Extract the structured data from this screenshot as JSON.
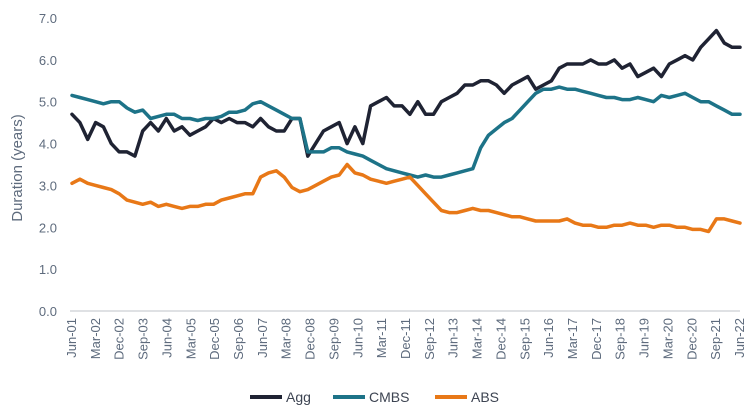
{
  "chart_data": {
    "type": "line",
    "title": "",
    "ylabel": "Duration (years)",
    "xlabel": "",
    "ylim": [
      0,
      7
    ],
    "yticks": [
      "0.0",
      "1.0",
      "2.0",
      "3.0",
      "4.0",
      "5.0",
      "6.0",
      "7.0"
    ],
    "grid": false,
    "legend_position": "bottom-center",
    "x_tick_labels": [
      "Jun-01",
      "Mar-02",
      "Dec-02",
      "Sep-03",
      "Jun-04",
      "Mar-05",
      "Dec-05",
      "Sep-06",
      "Jun-07",
      "Mar-08",
      "Dec-08",
      "Sep-09",
      "Jun-10",
      "Mar-11",
      "Dec-11",
      "Sep-12",
      "Jun-13",
      "Mar-14",
      "Dec-14",
      "Sep-15",
      "Jun-16",
      "Mar-17",
      "Dec-17",
      "Sep-18",
      "Jun-19",
      "Mar-20",
      "Dec-20",
      "Sep-21",
      "Jun-22"
    ],
    "x": [
      "Jun-01",
      "Sep-01",
      "Dec-01",
      "Mar-02",
      "Jun-02",
      "Sep-02",
      "Dec-02",
      "Mar-03",
      "Jun-03",
      "Sep-03",
      "Dec-03",
      "Mar-04",
      "Jun-04",
      "Sep-04",
      "Dec-04",
      "Mar-05",
      "Jun-05",
      "Sep-05",
      "Dec-05",
      "Mar-06",
      "Jun-06",
      "Sep-06",
      "Dec-06",
      "Mar-07",
      "Jun-07",
      "Sep-07",
      "Dec-07",
      "Mar-08",
      "Jun-08",
      "Sep-08",
      "Dec-08",
      "Mar-09",
      "Jun-09",
      "Sep-09",
      "Dec-09",
      "Mar-10",
      "Jun-10",
      "Sep-10",
      "Dec-10",
      "Mar-11",
      "Jun-11",
      "Sep-11",
      "Dec-11",
      "Mar-12",
      "Jun-12",
      "Sep-12",
      "Dec-12",
      "Mar-13",
      "Jun-13",
      "Sep-13",
      "Dec-13",
      "Mar-14",
      "Jun-14",
      "Sep-14",
      "Dec-14",
      "Mar-15",
      "Jun-15",
      "Sep-15",
      "Dec-15",
      "Mar-16",
      "Jun-16",
      "Sep-16",
      "Dec-16",
      "Mar-17",
      "Jun-17",
      "Sep-17",
      "Dec-17",
      "Mar-18",
      "Jun-18",
      "Sep-18",
      "Dec-18",
      "Mar-19",
      "Jun-19",
      "Sep-19",
      "Dec-19",
      "Mar-20",
      "Jun-20",
      "Sep-20",
      "Dec-20",
      "Mar-21",
      "Jun-21",
      "Sep-21",
      "Dec-21",
      "Mar-22",
      "Jun-22",
      "Sep-22"
    ],
    "series": [
      {
        "name": "Agg",
        "color": "#1f2333",
        "values": [
          4.7,
          4.5,
          4.1,
          4.5,
          4.4,
          4.0,
          3.8,
          3.8,
          3.7,
          4.3,
          4.5,
          4.3,
          4.6,
          4.3,
          4.4,
          4.2,
          4.3,
          4.4,
          4.6,
          4.5,
          4.6,
          4.5,
          4.5,
          4.4,
          4.6,
          4.4,
          4.3,
          4.3,
          4.6,
          4.6,
          3.7,
          4.0,
          4.3,
          4.4,
          4.5,
          4.0,
          4.4,
          4.0,
          4.9,
          5.0,
          5.1,
          4.9,
          4.9,
          4.7,
          5.0,
          4.7,
          4.7,
          5.0,
          5.1,
          5.2,
          5.4,
          5.4,
          5.5,
          5.5,
          5.4,
          5.2,
          5.4,
          5.5,
          5.6,
          5.3,
          5.4,
          5.5,
          5.8,
          5.9,
          5.9,
          5.9,
          6.0,
          5.9,
          5.9,
          6.0,
          5.8,
          5.9,
          5.6,
          5.7,
          5.8,
          5.6,
          5.9,
          6.0,
          6.1,
          6.0,
          6.3,
          6.5,
          6.7,
          6.4,
          6.3,
          6.3
        ]
      },
      {
        "name": "CMBS",
        "color": "#1d7388",
        "values": [
          5.15,
          5.1,
          5.05,
          5.0,
          4.95,
          5.0,
          5.0,
          4.85,
          4.75,
          4.8,
          4.6,
          4.65,
          4.7,
          4.7,
          4.6,
          4.6,
          4.55,
          4.6,
          4.6,
          4.65,
          4.75,
          4.75,
          4.8,
          4.95,
          5.0,
          4.9,
          4.8,
          4.7,
          4.6,
          4.6,
          3.8,
          3.8,
          3.8,
          3.9,
          3.9,
          3.8,
          3.75,
          3.7,
          3.6,
          3.5,
          3.4,
          3.35,
          3.3,
          3.25,
          3.2,
          3.25,
          3.2,
          3.2,
          3.25,
          3.3,
          3.35,
          3.4,
          3.9,
          4.2,
          4.35,
          4.5,
          4.6,
          4.8,
          5.0,
          5.2,
          5.3,
          5.3,
          5.35,
          5.3,
          5.3,
          5.25,
          5.2,
          5.15,
          5.1,
          5.1,
          5.05,
          5.05,
          5.1,
          5.05,
          5.0,
          5.15,
          5.1,
          5.15,
          5.2,
          5.1,
          5.0,
          5.0,
          4.9,
          4.8,
          4.7,
          4.7
        ]
      },
      {
        "name": "ABS",
        "color": "#e87817",
        "values": [
          3.05,
          3.15,
          3.05,
          3.0,
          2.95,
          2.9,
          2.8,
          2.65,
          2.6,
          2.55,
          2.6,
          2.5,
          2.55,
          2.5,
          2.45,
          2.5,
          2.5,
          2.55,
          2.55,
          2.65,
          2.7,
          2.75,
          2.8,
          2.8,
          3.2,
          3.3,
          3.35,
          3.2,
          2.95,
          2.85,
          2.9,
          3.0,
          3.1,
          3.2,
          3.25,
          3.5,
          3.3,
          3.25,
          3.15,
          3.1,
          3.05,
          3.1,
          3.15,
          3.2,
          3.0,
          2.8,
          2.6,
          2.4,
          2.35,
          2.35,
          2.4,
          2.45,
          2.4,
          2.4,
          2.35,
          2.3,
          2.25,
          2.25,
          2.2,
          2.15,
          2.15,
          2.15,
          2.15,
          2.2,
          2.1,
          2.05,
          2.05,
          2.0,
          2.0,
          2.05,
          2.05,
          2.1,
          2.05,
          2.05,
          2.0,
          2.05,
          2.05,
          2.0,
          2.0,
          1.95,
          1.95,
          1.9,
          2.2,
          2.2,
          2.15,
          2.1
        ]
      }
    ]
  }
}
